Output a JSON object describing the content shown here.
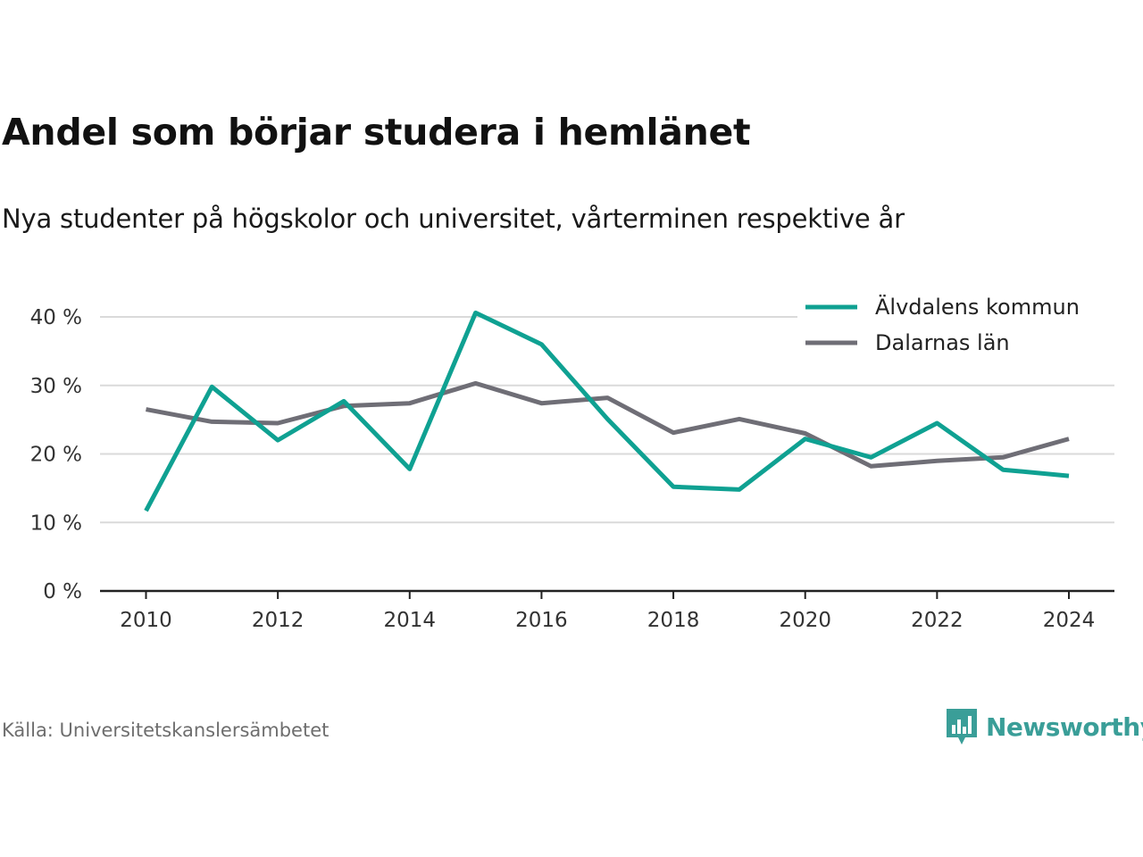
{
  "title": "Andel som börjar studera i hemlänet",
  "subtitle": "Nya studenter på högskolor och universitet, vårterminen respektive år",
  "source": "Källa: Universitetskanslersämbetet",
  "brand": {
    "name": "Newsworthy",
    "icon": "newsworthy-logo-icon",
    "color": "#3a9e98"
  },
  "chart_data": {
    "type": "line",
    "title": "Andel som börjar studera i hemlänet",
    "subtitle": "Nya studenter på högskolor och universitet, vårterminen respektive år",
    "x": [
      2010,
      2011,
      2012,
      2013,
      2014,
      2015,
      2016,
      2017,
      2018,
      2019,
      2020,
      2021,
      2022,
      2023,
      2024
    ],
    "x_ticks": [
      "2010",
      "2012",
      "2014",
      "2016",
      "2018",
      "2020",
      "2022",
      "2024"
    ],
    "y_ticks": [
      "0 %",
      "10 %",
      "20 %",
      "30 %",
      "40 %"
    ],
    "ylim": [
      0,
      40
    ],
    "xlim": [
      2009.3,
      2024.7
    ],
    "grid": "horizontal",
    "legend_position": "top-right",
    "series": [
      {
        "name": "Älvdalens kommun",
        "color": "#0fa192",
        "values": [
          11.7,
          29.8,
          22.0,
          27.7,
          17.8,
          40.6,
          36.0,
          25.1,
          15.2,
          14.8,
          22.2,
          19.5,
          24.5,
          17.7,
          16.8
        ]
      },
      {
        "name": "Dalarnas län",
        "color": "#6f6e76",
        "values": [
          26.5,
          24.7,
          24.5,
          27.0,
          27.4,
          30.3,
          27.4,
          28.2,
          23.1,
          25.1,
          23.0,
          18.2,
          19.0,
          19.5,
          22.2
        ]
      }
    ]
  }
}
